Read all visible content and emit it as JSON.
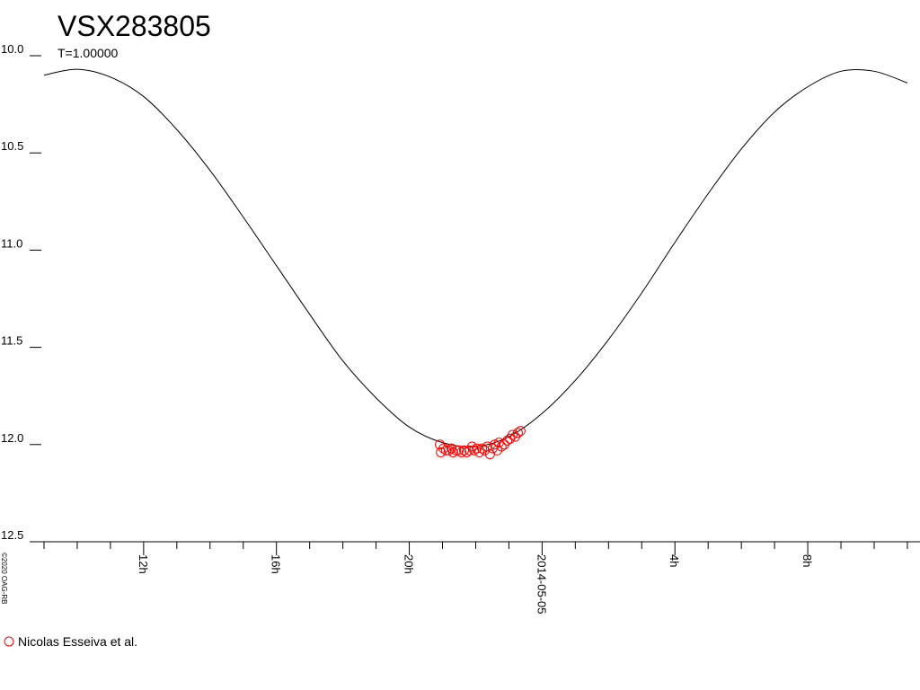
{
  "chart_data": {
    "type": "scatter",
    "title": "VSX283805",
    "subtitle": "T=1.00000",
    "credit": "©2020 OAG-RB",
    "ylim": [
      12.5,
      10.0
    ],
    "inverted_y": true,
    "yticks": [
      {
        "value": 10,
        "label": "10.0"
      },
      {
        "value": 10.5,
        "label": "10.5"
      },
      {
        "value": 11,
        "label": "11.0"
      },
      {
        "value": 11.5,
        "label": "11.5"
      },
      {
        "value": 12,
        "label": "12.0"
      },
      {
        "value": 12.5,
        "label": "12.5"
      }
    ],
    "xlim": [
      -15.27,
      11.38
    ],
    "xticks": [
      {
        "value": -12,
        "label": "12h"
      },
      {
        "value": -8,
        "label": "16h"
      },
      {
        "value": -4,
        "label": "20h"
      },
      {
        "value": 0,
        "label": "2014-05-05"
      },
      {
        "value": 4,
        "label": "4h"
      },
      {
        "value": 8,
        "label": "8h"
      }
    ],
    "xminorticks": [
      -15,
      -14,
      -13,
      -11,
      -10,
      -9,
      -7,
      -6,
      -5,
      -3,
      -2,
      -1,
      1,
      2,
      3,
      5,
      6,
      7,
      9,
      10,
      11
    ],
    "series": [
      {
        "type": "line",
        "color": "#000000",
        "x": [
          -15,
          -14,
          -13,
          -12,
          -11,
          -10,
          -9,
          -8,
          -7,
          -6,
          -5,
          -4,
          -3,
          -2,
          -1,
          0,
          1,
          2,
          3,
          4,
          5,
          6,
          7,
          8,
          9,
          10,
          11
        ],
        "values": [
          10.1,
          10.07,
          10.11,
          10.21,
          10.38,
          10.59,
          10.83,
          11.08,
          11.33,
          11.57,
          11.76,
          11.91,
          11.99,
          12.01,
          11.96,
          11.84,
          11.67,
          11.46,
          11.22,
          10.96,
          10.71,
          10.48,
          10.29,
          10.16,
          10.08,
          10.08,
          10.14
        ]
      },
      {
        "type": "scatter",
        "name": "Nicolas Esseiva et al.",
        "color": "#ff0000",
        "x": [
          -3.08,
          -3.05,
          -2.97,
          -2.89,
          -2.81,
          -2.73,
          -2.68,
          -2.59,
          -2.51,
          -2.43,
          -2.35,
          -2.27,
          -2.19,
          -2.11,
          -2.05,
          -1.97,
          -1.89,
          -1.81,
          -1.73,
          -1.65,
          -1.57,
          -1.49,
          -1.43,
          -1.35,
          -1.3,
          -1.22,
          -1.14,
          -1.05,
          -0.97,
          -0.89,
          -0.81,
          -0.73,
          -0.65
        ],
        "values": [
          12.0,
          12.04,
          12.02,
          12.03,
          12.03,
          12.02,
          12.04,
          12.03,
          12.03,
          12.04,
          12.03,
          12.04,
          12.03,
          12.01,
          12.03,
          12.02,
          12.04,
          12.02,
          12.03,
          12.01,
          12.05,
          12.02,
          12.0,
          12.03,
          11.99,
          12.01,
          12.0,
          11.98,
          11.97,
          11.95,
          11.96,
          11.94,
          11.93
        ]
      }
    ]
  }
}
